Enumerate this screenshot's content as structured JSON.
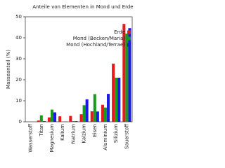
{
  "chart_data": {
    "type": "bar",
    "title": "Anteile von Elementen in Mond und Erde",
    "y_label": "Masseanteil (%)",
    "categories": [
      "Wasserstoff",
      "Titan",
      "Magnesium",
      "Kalium",
      "Natrium",
      "Kalzium",
      "Eisen",
      "Aluminium",
      "Silizium",
      "Sauerstoff"
    ],
    "series": [
      {
        "name": "Erde",
        "color": "#e41a1c",
        "values": [
          0.1,
          0.6,
          2.1,
          2.6,
          2.8,
          3.6,
          5,
          8.1,
          27.7,
          46.6
        ]
      },
      {
        "name": "Mond (Becken/Maria)",
        "color": "#1a9a1a",
        "values": [
          0,
          3.1,
          5.8,
          0.1,
          0.3,
          7.9,
          13.2,
          6.8,
          21,
          42
        ]
      },
      {
        "name": "Mond (Hochland/Terrae)",
        "color": "#1a1ae4",
        "values": [
          0,
          0.3,
          4.5,
          0.1,
          0.3,
          10.7,
          4.9,
          13.3,
          21,
          44.6
        ]
      }
    ],
    "ylim": [
      0,
      50
    ],
    "yticks": [
      0,
      10,
      20,
      30,
      40,
      50
    ],
    "legend": "upper-right"
  }
}
